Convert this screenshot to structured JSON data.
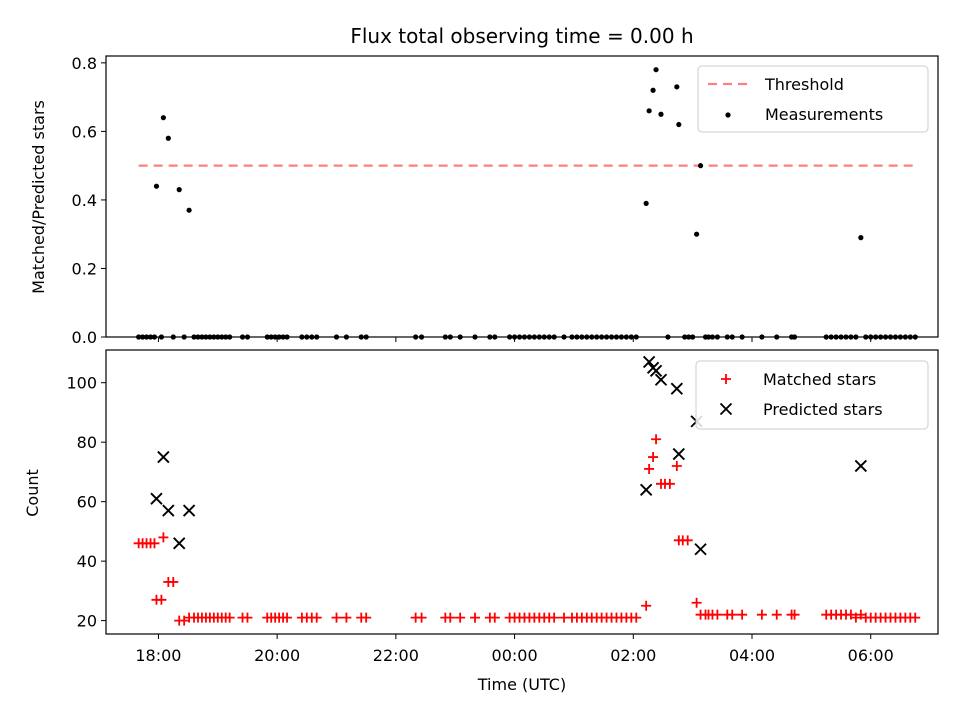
{
  "chart_data": [
    {
      "type": "scatter",
      "title": "Flux total observing time = 0.00 h",
      "xlabel": "",
      "ylabel": "Matched/Predicted stars",
      "xlim": [
        "17:07",
        "07:08"
      ],
      "ylim": [
        0,
        0.82
      ],
      "yticks": [
        "0.0",
        "0.2",
        "0.4",
        "0.6",
        "0.8"
      ],
      "legend_position": "upper-right",
      "threshold": {
        "name": "Threshold",
        "value": 0.5,
        "x_start": "17:40",
        "x_end": "06:45",
        "color": "#ff7f7f"
      },
      "series": [
        {
          "name": "Measurements",
          "color": "#000000",
          "points": [
            [
              "17:58",
              0.44
            ],
            [
              "18:05",
              0.64
            ],
            [
              "18:10",
              0.58
            ],
            [
              "18:21",
              0.43
            ],
            [
              "18:31",
              0.37
            ],
            [
              "02:13",
              0.39
            ],
            [
              "02:16",
              0.66
            ],
            [
              "02:20",
              0.72
            ],
            [
              "02:23",
              0.78
            ],
            [
              "02:28",
              0.65
            ],
            [
              "02:44",
              0.73
            ],
            [
              "02:46",
              0.62
            ],
            [
              "03:04",
              0.3
            ],
            [
              "03:08",
              0.5
            ],
            [
              "05:50",
              0.29
            ],
            [
              "17:40",
              0
            ],
            [
              "17:44",
              0
            ],
            [
              "17:48",
              0
            ],
            [
              "17:52",
              0
            ],
            [
              "17:56",
              0
            ],
            [
              "18:03",
              0
            ],
            [
              "18:15",
              0
            ],
            [
              "18:26",
              0
            ],
            [
              "18:36",
              0
            ],
            [
              "18:40",
              0
            ],
            [
              "18:44",
              0
            ],
            [
              "18:48",
              0
            ],
            [
              "18:52",
              0
            ],
            [
              "18:56",
              0
            ],
            [
              "19:00",
              0
            ],
            [
              "19:04",
              0
            ],
            [
              "19:08",
              0
            ],
            [
              "19:12",
              0
            ],
            [
              "19:25",
              0
            ],
            [
              "19:30",
              0
            ],
            [
              "19:50",
              0
            ],
            [
              "19:54",
              0
            ],
            [
              "19:58",
              0
            ],
            [
              "20:02",
              0
            ],
            [
              "20:06",
              0
            ],
            [
              "20:10",
              0
            ],
            [
              "20:25",
              0
            ],
            [
              "20:30",
              0
            ],
            [
              "20:35",
              0
            ],
            [
              "20:40",
              0
            ],
            [
              "21:00",
              0
            ],
            [
              "21:10",
              0
            ],
            [
              "21:25",
              0
            ],
            [
              "21:30",
              0
            ],
            [
              "22:20",
              0
            ],
            [
              "22:26",
              0
            ],
            [
              "22:50",
              0
            ],
            [
              "22:55",
              0
            ],
            [
              "23:05",
              0
            ],
            [
              "23:20",
              0
            ],
            [
              "23:35",
              0
            ],
            [
              "23:40",
              0
            ],
            [
              "23:55",
              0
            ],
            [
              "00:00",
              0
            ],
            [
              "00:05",
              0
            ],
            [
              "00:10",
              0
            ],
            [
              "00:15",
              0
            ],
            [
              "00:20",
              0
            ],
            [
              "00:25",
              0
            ],
            [
              "00:30",
              0
            ],
            [
              "00:35",
              0
            ],
            [
              "00:40",
              0
            ],
            [
              "00:50",
              0
            ],
            [
              "00:58",
              0
            ],
            [
              "01:03",
              0
            ],
            [
              "01:08",
              0
            ],
            [
              "01:13",
              0
            ],
            [
              "01:18",
              0
            ],
            [
              "01:23",
              0
            ],
            [
              "01:28",
              0
            ],
            [
              "01:33",
              0
            ],
            [
              "01:38",
              0
            ],
            [
              "01:43",
              0
            ],
            [
              "01:48",
              0
            ],
            [
              "01:53",
              0
            ],
            [
              "01:58",
              0
            ],
            [
              "02:03",
              0
            ],
            [
              "02:35",
              0
            ],
            [
              "02:52",
              0
            ],
            [
              "02:56",
              0
            ],
            [
              "03:00",
              0
            ],
            [
              "03:13",
              0
            ],
            [
              "03:16",
              0
            ],
            [
              "03:20",
              0
            ],
            [
              "03:25",
              0
            ],
            [
              "03:35",
              0
            ],
            [
              "03:40",
              0
            ],
            [
              "03:50",
              0
            ],
            [
              "04:10",
              0
            ],
            [
              "04:25",
              0
            ],
            [
              "04:40",
              0
            ],
            [
              "04:43",
              0
            ],
            [
              "05:15",
              0
            ],
            [
              "05:20",
              0
            ],
            [
              "05:25",
              0
            ],
            [
              "05:30",
              0
            ],
            [
              "05:35",
              0
            ],
            [
              "05:40",
              0
            ],
            [
              "05:45",
              0
            ],
            [
              "05:55",
              0
            ],
            [
              "06:00",
              0
            ],
            [
              "06:05",
              0
            ],
            [
              "06:10",
              0
            ],
            [
              "06:15",
              0
            ],
            [
              "06:20",
              0
            ],
            [
              "06:25",
              0
            ],
            [
              "06:30",
              0
            ],
            [
              "06:35",
              0
            ],
            [
              "06:40",
              0
            ],
            [
              "06:45",
              0
            ]
          ]
        }
      ]
    },
    {
      "type": "scatter",
      "title": "",
      "xlabel": "Time (UTC)",
      "ylabel": "Count",
      "xlim": [
        "17:07",
        "07:08"
      ],
      "ylim": [
        15.5,
        111
      ],
      "yticks": [
        "20",
        "40",
        "60",
        "80",
        "100"
      ],
      "xticks": [
        "18:00",
        "20:00",
        "22:00",
        "00:00",
        "02:00",
        "04:00",
        "06:00"
      ],
      "legend_position": "upper-right",
      "series": [
        {
          "name": "Matched stars",
          "color": "#ff0000",
          "marker": "plus",
          "points": [
            [
              "17:40",
              46
            ],
            [
              "17:44",
              46
            ],
            [
              "17:48",
              46
            ],
            [
              "17:52",
              46
            ],
            [
              "17:56",
              46
            ],
            [
              "17:58",
              27
            ],
            [
              "18:03",
              27
            ],
            [
              "18:05",
              48
            ],
            [
              "18:10",
              33
            ],
            [
              "18:15",
              33
            ],
            [
              "18:21",
              20
            ],
            [
              "18:26",
              20
            ],
            [
              "18:31",
              21
            ],
            [
              "18:36",
              21
            ],
            [
              "18:40",
              21
            ],
            [
              "18:44",
              21
            ],
            [
              "18:48",
              21
            ],
            [
              "18:52",
              21
            ],
            [
              "18:56",
              21
            ],
            [
              "19:00",
              21
            ],
            [
              "19:04",
              21
            ],
            [
              "19:08",
              21
            ],
            [
              "19:12",
              21
            ],
            [
              "19:25",
              21
            ],
            [
              "19:30",
              21
            ],
            [
              "19:50",
              21
            ],
            [
              "19:54",
              21
            ],
            [
              "19:58",
              21
            ],
            [
              "20:02",
              21
            ],
            [
              "20:06",
              21
            ],
            [
              "20:10",
              21
            ],
            [
              "20:25",
              21
            ],
            [
              "20:30",
              21
            ],
            [
              "20:35",
              21
            ],
            [
              "20:40",
              21
            ],
            [
              "21:00",
              21
            ],
            [
              "21:10",
              21
            ],
            [
              "21:25",
              21
            ],
            [
              "21:30",
              21
            ],
            [
              "22:20",
              21
            ],
            [
              "22:26",
              21
            ],
            [
              "22:50",
              21
            ],
            [
              "22:55",
              21
            ],
            [
              "23:05",
              21
            ],
            [
              "23:20",
              21
            ],
            [
              "23:35",
              21
            ],
            [
              "23:40",
              21
            ],
            [
              "23:55",
              21
            ],
            [
              "00:00",
              21
            ],
            [
              "00:05",
              21
            ],
            [
              "00:10",
              21
            ],
            [
              "00:15",
              21
            ],
            [
              "00:20",
              21
            ],
            [
              "00:25",
              21
            ],
            [
              "00:30",
              21
            ],
            [
              "00:35",
              21
            ],
            [
              "00:40",
              21
            ],
            [
              "00:50",
              21
            ],
            [
              "00:58",
              21
            ],
            [
              "01:03",
              21
            ],
            [
              "01:08",
              21
            ],
            [
              "01:13",
              21
            ],
            [
              "01:18",
              21
            ],
            [
              "01:23",
              21
            ],
            [
              "01:28",
              21
            ],
            [
              "01:33",
              21
            ],
            [
              "01:38",
              21
            ],
            [
              "01:43",
              21
            ],
            [
              "01:48",
              21
            ],
            [
              "01:53",
              21
            ],
            [
              "01:58",
              21
            ],
            [
              "02:03",
              21
            ],
            [
              "02:13",
              25
            ],
            [
              "02:16",
              71
            ],
            [
              "02:20",
              75
            ],
            [
              "02:23",
              81
            ],
            [
              "02:28",
              66
            ],
            [
              "02:32",
              66
            ],
            [
              "02:37",
              66
            ],
            [
              "02:44",
              72
            ],
            [
              "02:46",
              47
            ],
            [
              "02:50",
              47
            ],
            [
              "02:55",
              47
            ],
            [
              "03:04",
              26
            ],
            [
              "03:08",
              22
            ],
            [
              "03:13",
              22
            ],
            [
              "03:16",
              22
            ],
            [
              "03:20",
              22
            ],
            [
              "03:25",
              22
            ],
            [
              "03:35",
              22
            ],
            [
              "03:40",
              22
            ],
            [
              "03:50",
              22
            ],
            [
              "04:10",
              22
            ],
            [
              "04:25",
              22
            ],
            [
              "04:40",
              22
            ],
            [
              "04:43",
              22
            ],
            [
              "05:15",
              22
            ],
            [
              "05:20",
              22
            ],
            [
              "05:25",
              22
            ],
            [
              "05:30",
              22
            ],
            [
              "05:35",
              22
            ],
            [
              "05:40",
              22
            ],
            [
              "05:45",
              21
            ],
            [
              "05:50",
              22
            ],
            [
              "05:55",
              21
            ],
            [
              "06:00",
              21
            ],
            [
              "06:05",
              21
            ],
            [
              "06:10",
              21
            ],
            [
              "06:15",
              21
            ],
            [
              "06:20",
              21
            ],
            [
              "06:25",
              21
            ],
            [
              "06:30",
              21
            ],
            [
              "06:35",
              21
            ],
            [
              "06:40",
              21
            ],
            [
              "06:45",
              21
            ]
          ]
        },
        {
          "name": "Predicted stars",
          "color": "#000000",
          "marker": "x",
          "points": [
            [
              "17:58",
              61
            ],
            [
              "18:05",
              75
            ],
            [
              "18:10",
              57
            ],
            [
              "18:21",
              46
            ],
            [
              "18:31",
              57
            ],
            [
              "02:13",
              64
            ],
            [
              "02:16",
              107
            ],
            [
              "02:20",
              105
            ],
            [
              "02:23",
              104
            ],
            [
              "02:28",
              101
            ],
            [
              "02:44",
              98
            ],
            [
              "02:46",
              76
            ],
            [
              "03:04",
              87
            ],
            [
              "03:08",
              44
            ],
            [
              "05:50",
              72
            ]
          ]
        }
      ]
    }
  ]
}
